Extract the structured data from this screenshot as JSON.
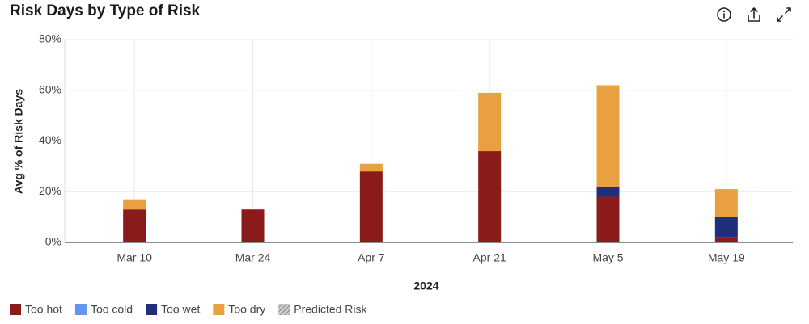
{
  "chart_data": {
    "type": "stacked_bar",
    "title": "Risk Days by Type of Risk",
    "categories": [
      "Mar 10",
      "Mar 24",
      "Apr 7",
      "Apr 21",
      "May 5",
      "May 19"
    ],
    "series": [
      {
        "name": "Too hot",
        "color": "#8b1a1a",
        "values": [
          13,
          13,
          28,
          36,
          18,
          2
        ]
      },
      {
        "name": "Too cold",
        "color": "#6495ed",
        "values": [
          0,
          0,
          0,
          0,
          0,
          0
        ]
      },
      {
        "name": "Too wet",
        "color": "#1f2f7a",
        "values": [
          0,
          0,
          0,
          0,
          4,
          8
        ]
      },
      {
        "name": "Too dry",
        "color": "#e8a040",
        "values": [
          4,
          0,
          3,
          23,
          40,
          11
        ]
      }
    ],
    "predicted_legend": "Predicted Risk",
    "ylabel": "Avg % of Risk Days",
    "xlabel": "2024",
    "ylim": [
      0,
      80
    ],
    "yticks": [
      {
        "value": 0,
        "label": "0%"
      },
      {
        "value": 20,
        "label": "20%"
      },
      {
        "value": 40,
        "label": "40%"
      },
      {
        "value": 60,
        "label": "60%"
      },
      {
        "value": 80,
        "label": "80%"
      }
    ],
    "grid": true
  }
}
